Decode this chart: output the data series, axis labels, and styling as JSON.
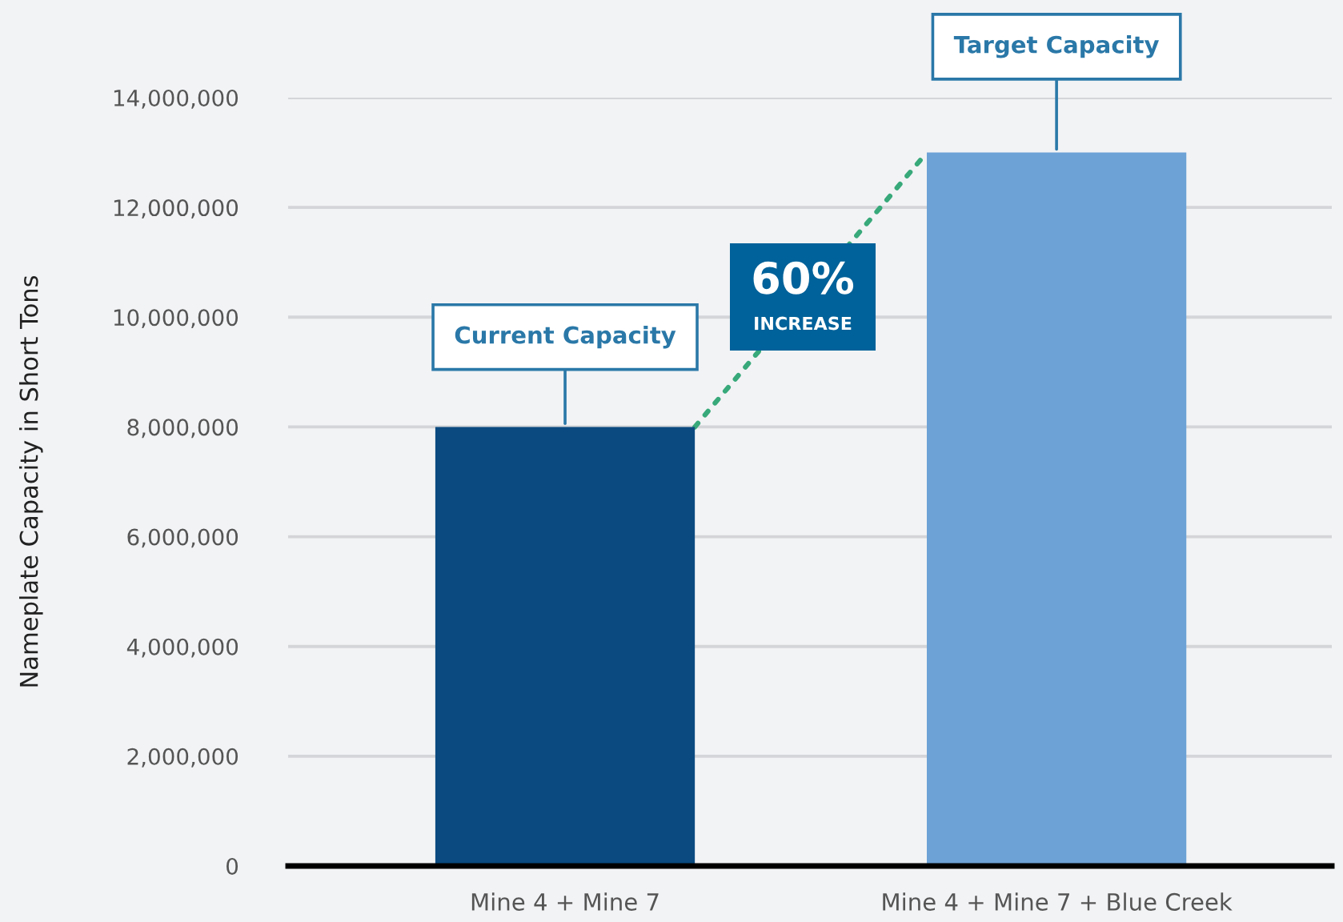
{
  "chart_data": {
    "type": "bar",
    "categories": [
      "Mine 4 + Mine 7",
      "Mine 4 + Mine 7 + Blue Creek"
    ],
    "values": [
      8000000,
      13000000
    ],
    "colors": [
      "#0a4a80",
      "#6ca2d6"
    ],
    "ylabel": "Nameplate Capacity in Short Tons",
    "ylim": [
      0,
      14000000
    ],
    "yticks": [
      0,
      {
        "value": 2000000,
        "label": "2,000,000"
      },
      {
        "value": 4000000,
        "label": "4,000,000"
      },
      {
        "value": 6000000,
        "label": "6,000,000"
      },
      {
        "value": 8000000,
        "label": "8,000,000"
      },
      {
        "value": 10000000,
        "label": "10,000,000"
      },
      {
        "value": 12000000,
        "label": "12,000,000"
      },
      {
        "value": 14000000,
        "label": "14,000,000"
      }
    ],
    "grid": "y",
    "annotations": [
      {
        "text": "Current Capacity",
        "x": "Mine 4 + Mine 7",
        "y": 8000000
      },
      {
        "text": "Target Capacity",
        "x": "Mine 4 + Mine 7 + Blue Creek",
        "y": 13000000
      },
      "60%",
      "INCREASE"
    ]
  }
}
